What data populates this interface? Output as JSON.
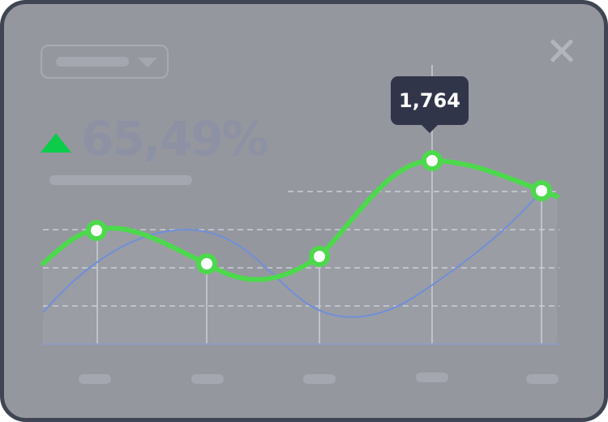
{
  "widget": {
    "change_direction": "up",
    "change_percent": "65,49%",
    "tooltip_value": "1,764",
    "colors": {
      "accent_green": "#4cd94c",
      "up_arrow": "#0ccc4a",
      "secondary_line": "#6f8fd8",
      "tooltip_bg": "#30354a"
    },
    "icons": {
      "dropdown": "chevron-down-icon",
      "close": "close-icon",
      "trend": "triangle-up-icon"
    }
  }
}
